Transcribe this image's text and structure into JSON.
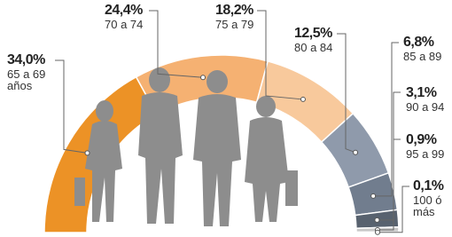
{
  "chart_data": {
    "type": "semi-donut",
    "categories": [
      "65 a 69 años",
      "70 a 74",
      "75 a 79",
      "80 a 84",
      "85 a 89",
      "90 a 94",
      "95 a 99",
      "100 ó más"
    ],
    "values": [
      34.0,
      24.4,
      18.2,
      12.5,
      6.8,
      3.1,
      0.9,
      0.1
    ],
    "value_labels": [
      "34,0%",
      "24,4%",
      "18,2%",
      "12,5%",
      "6,8%",
      "3,1%",
      "0,9%",
      "0,1%"
    ],
    "colors": [
      "#ec9226",
      "#f5b172",
      "#f8c99c",
      "#8f9aab",
      "#717d8e",
      "#58626f",
      "#c8c8c8",
      "#9b9b9b"
    ]
  }
}
